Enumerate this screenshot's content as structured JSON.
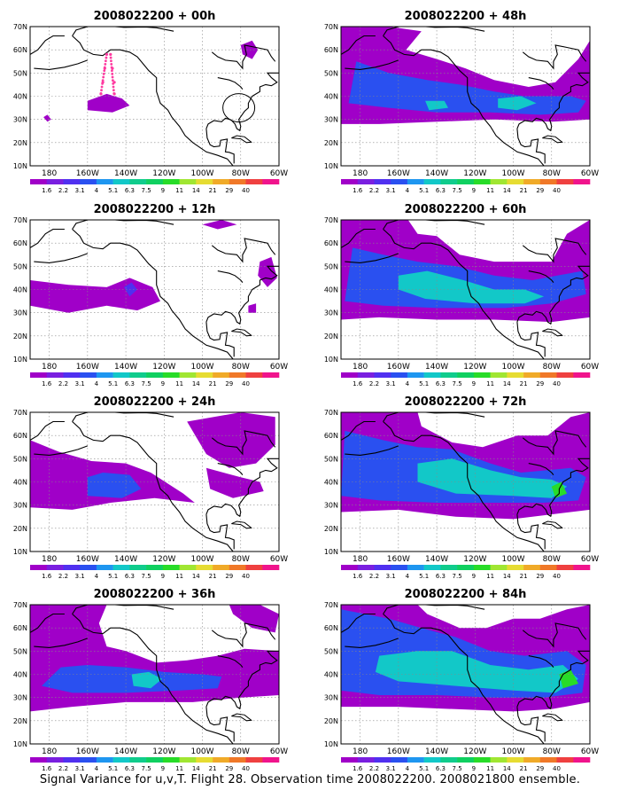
{
  "caption": "Signal Variance for u,v,T. Flight 28. Observation time 2008022200. 2008021800 ensemble.",
  "lat_labels": [
    "70N",
    "60N",
    "50N",
    "40N",
    "30N",
    "20N",
    "10N"
  ],
  "lon_labels": [
    "180",
    "160W",
    "140W",
    "120W",
    "100W",
    "80W",
    "60W"
  ],
  "colorbar": {
    "labels": [
      "1.6",
      "2.2",
      "3.1",
      "4",
      "5.1",
      "6.3",
      "7.5",
      "9",
      "11",
      "14",
      "21",
      "29",
      "40"
    ],
    "colors": [
      "#a000c8",
      "#7a1fe0",
      "#5030f0",
      "#2a50f0",
      "#1e96f0",
      "#12c8c8",
      "#10cc8c",
      "#10d060",
      "#28dc28",
      "#a0e632",
      "#e6dc32",
      "#f0aa28",
      "#f07828",
      "#ef4040",
      "#f0148c"
    ]
  },
  "palette": {
    "coast": "#000000",
    "grid": "#888888",
    "magenta_dots": "#ff3aa0"
  },
  "panels": [
    {
      "id": "p00",
      "title": "2008022200 + 00h",
      "level": 0
    },
    {
      "id": "p12",
      "title": "2008022200 + 12h",
      "level": 1
    },
    {
      "id": "p24",
      "title": "2008022200 + 24h",
      "level": 2
    },
    {
      "id": "p36",
      "title": "2008022200 + 36h",
      "level": 3
    },
    {
      "id": "p48",
      "title": "2008022200 + 48h",
      "level": 4
    },
    {
      "id": "p60",
      "title": "2008022200 + 60h",
      "level": 5
    },
    {
      "id": "p72",
      "title": "2008022200 + 72h",
      "level": 6
    },
    {
      "id": "p84",
      "title": "2008022200 + 84h",
      "level": 7
    }
  ]
}
